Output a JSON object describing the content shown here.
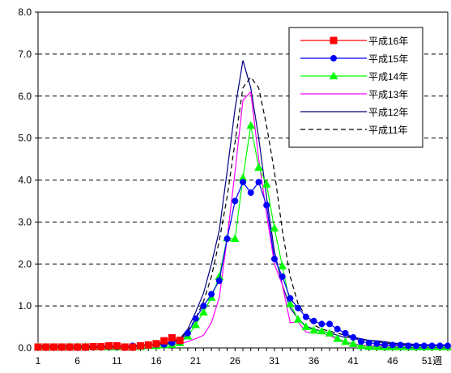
{
  "chart_data": {
    "type": "line",
    "title": "",
    "xlabel": "",
    "ylabel": "",
    "ylim": [
      0,
      8
    ],
    "yticks": [
      "0.0",
      "1.0",
      "2.0",
      "3.0",
      "4.0",
      "5.0",
      "6.0",
      "7.0",
      "8.0"
    ],
    "xlim": [
      1,
      53
    ],
    "xticks": [
      "1",
      "6",
      "11",
      "16",
      "21",
      "26",
      "31",
      "36",
      "41",
      "46",
      "51週"
    ],
    "grid": "horizontal dashed",
    "legend_position": "top-right",
    "series": [
      {
        "name": "平成16年",
        "color": "#ff0000",
        "marker": "square",
        "dash": "",
        "x": [
          1,
          2,
          3,
          4,
          5,
          6,
          7,
          8,
          9,
          10,
          11,
          12,
          13,
          14,
          15,
          16,
          17,
          18,
          19
        ],
        "values": [
          0.02,
          0.02,
          0.02,
          0.02,
          0.02,
          0.02,
          0.02,
          0.03,
          0.03,
          0.05,
          0.05,
          0.02,
          0.02,
          0.05,
          0.07,
          0.1,
          0.17,
          0.24,
          0.18
        ]
      },
      {
        "name": "平成15年",
        "color": "#0000ff",
        "marker": "circle",
        "dash": "",
        "x": [
          1,
          2,
          3,
          4,
          5,
          6,
          7,
          8,
          9,
          10,
          11,
          12,
          13,
          14,
          15,
          16,
          17,
          18,
          19,
          20,
          21,
          22,
          23,
          24,
          25,
          26,
          27,
          28,
          29,
          30,
          31,
          32,
          33,
          34,
          35,
          36,
          37,
          38,
          39,
          40,
          41,
          42,
          43,
          44,
          45,
          46,
          47,
          48,
          49,
          50,
          51,
          52,
          53
        ],
        "values": [
          0.02,
          0.02,
          0.02,
          0.02,
          0.02,
          0.02,
          0.02,
          0.02,
          0.02,
          0.03,
          0.03,
          0.03,
          0.05,
          0.05,
          0.07,
          0.08,
          0.08,
          0.12,
          0.16,
          0.35,
          0.7,
          1.0,
          1.28,
          1.6,
          2.6,
          3.5,
          3.95,
          3.7,
          3.95,
          3.4,
          2.12,
          1.7,
          1.18,
          0.95,
          0.74,
          0.64,
          0.57,
          0.57,
          0.45,
          0.35,
          0.25,
          0.15,
          0.12,
          0.1,
          0.07,
          0.07,
          0.07,
          0.05,
          0.05,
          0.05,
          0.05,
          0.05,
          0.05
        ]
      },
      {
        "name": "平成14年",
        "color": "#00ff00",
        "marker": "triangle",
        "dash": "",
        "x": [
          1,
          2,
          3,
          4,
          5,
          6,
          7,
          8,
          9,
          10,
          11,
          12,
          13,
          14,
          15,
          16,
          17,
          18,
          19,
          20,
          21,
          22,
          23,
          24,
          25,
          26,
          27,
          28,
          29,
          30,
          31,
          32,
          33,
          34,
          35,
          36,
          37,
          38,
          39,
          40,
          41,
          42,
          43,
          44,
          45,
          46,
          47,
          48,
          49,
          50,
          51,
          52,
          53
        ],
        "values": [
          0.02,
          0.02,
          0.02,
          0.02,
          0.03,
          0.03,
          0.03,
          0.02,
          0.02,
          0.02,
          0.02,
          0.02,
          0.03,
          0.03,
          0.05,
          0.05,
          0.07,
          0.08,
          0.12,
          0.28,
          0.55,
          0.85,
          1.2,
          1.7,
          2.62,
          2.6,
          4.05,
          5.3,
          4.3,
          3.9,
          2.85,
          1.95,
          1.05,
          0.68,
          0.5,
          0.42,
          0.4,
          0.35,
          0.22,
          0.15,
          0.1,
          0.05,
          0.03,
          0.03,
          0.02,
          0.02,
          0.02,
          0.02,
          0.02,
          0.02,
          0.02,
          0.02,
          0.02
        ]
      },
      {
        "name": "平成13年",
        "color": "#ff00ff",
        "marker": "none",
        "dash": "",
        "x": [
          1,
          2,
          3,
          4,
          5,
          6,
          7,
          8,
          9,
          10,
          11,
          12,
          13,
          14,
          15,
          16,
          17,
          18,
          19,
          20,
          21,
          22,
          23,
          24,
          25,
          26,
          27,
          28,
          29,
          30,
          31,
          32,
          33,
          34,
          35,
          36,
          37,
          38,
          39,
          40,
          41,
          42,
          43,
          44,
          45,
          46,
          47,
          48,
          49,
          50,
          51,
          52,
          53
        ],
        "values": [
          0.03,
          0.03,
          0.03,
          0.03,
          0.03,
          0.03,
          0.03,
          0.03,
          0.03,
          0.03,
          0.03,
          0.03,
          0.03,
          0.03,
          0.05,
          0.05,
          0.07,
          0.08,
          0.1,
          0.15,
          0.22,
          0.3,
          0.6,
          1.2,
          2.6,
          4.2,
          5.9,
          6.1,
          4.5,
          3.2,
          2.0,
          1.5,
          0.6,
          0.62,
          0.38,
          0.35,
          0.35,
          0.3,
          0.2,
          0.12,
          0.1,
          0.07,
          0.05,
          0.05,
          0.05,
          0.05,
          0.05,
          0.05,
          0.05,
          0.05,
          0.05,
          0.05,
          0.05
        ]
      },
      {
        "name": "平成12年",
        "color": "#000080",
        "marker": "none",
        "dash": "",
        "x": [
          1,
          2,
          3,
          4,
          5,
          6,
          7,
          8,
          9,
          10,
          11,
          12,
          13,
          14,
          15,
          16,
          17,
          18,
          19,
          20,
          21,
          22,
          23,
          24,
          25,
          26,
          27,
          28,
          29,
          30,
          31,
          32,
          33,
          34,
          35,
          36,
          37,
          38,
          39,
          40,
          41,
          42,
          43,
          44,
          45,
          46,
          47,
          48,
          49,
          50,
          51,
          52,
          53
        ],
        "values": [
          0.05,
          0.05,
          0.05,
          0.05,
          0.05,
          0.05,
          0.05,
          0.05,
          0.05,
          0.05,
          0.05,
          0.05,
          0.05,
          0.07,
          0.08,
          0.1,
          0.12,
          0.15,
          0.22,
          0.45,
          0.85,
          1.3,
          2.0,
          2.8,
          4.2,
          5.7,
          6.85,
          6.2,
          5.0,
          3.6,
          2.3,
          1.5,
          0.95,
          0.7,
          0.52,
          0.45,
          0.4,
          0.36,
          0.3,
          0.25,
          0.25,
          0.22,
          0.18,
          0.17,
          0.15,
          0.12,
          0.1,
          0.1,
          0.08,
          0.08,
          0.07,
          0.07,
          0.07
        ]
      },
      {
        "name": "平成11年",
        "color": "#000000",
        "marker": "none",
        "dash": "dashed",
        "x": [
          1,
          2,
          3,
          4,
          5,
          6,
          7,
          8,
          9,
          10,
          11,
          12,
          13,
          14,
          15,
          16,
          17,
          18,
          19,
          20,
          21,
          22,
          23,
          24,
          25,
          26,
          27,
          28,
          29,
          30,
          31,
          32,
          33,
          34,
          35,
          36,
          37,
          38,
          39,
          40,
          41,
          42,
          43,
          44,
          45,
          46,
          47,
          48,
          49,
          50,
          51,
          52,
          53
        ],
        "values": [
          0.03,
          0.03,
          0.03,
          0.03,
          0.03,
          0.03,
          0.03,
          0.03,
          0.03,
          0.03,
          0.03,
          0.03,
          0.03,
          0.05,
          0.07,
          0.08,
          0.1,
          0.14,
          0.2,
          0.4,
          0.7,
          1.1,
          1.7,
          2.55,
          3.6,
          4.9,
          6.2,
          6.45,
          6.2,
          5.3,
          4.2,
          2.8,
          1.7,
          1.05,
          0.75,
          0.55,
          0.45,
          0.4,
          0.35,
          0.3,
          0.25,
          0.2,
          0.18,
          0.15,
          0.12,
          0.1,
          0.1,
          0.08,
          0.08,
          0.07,
          0.07,
          0.07,
          0.07
        ]
      }
    ]
  }
}
